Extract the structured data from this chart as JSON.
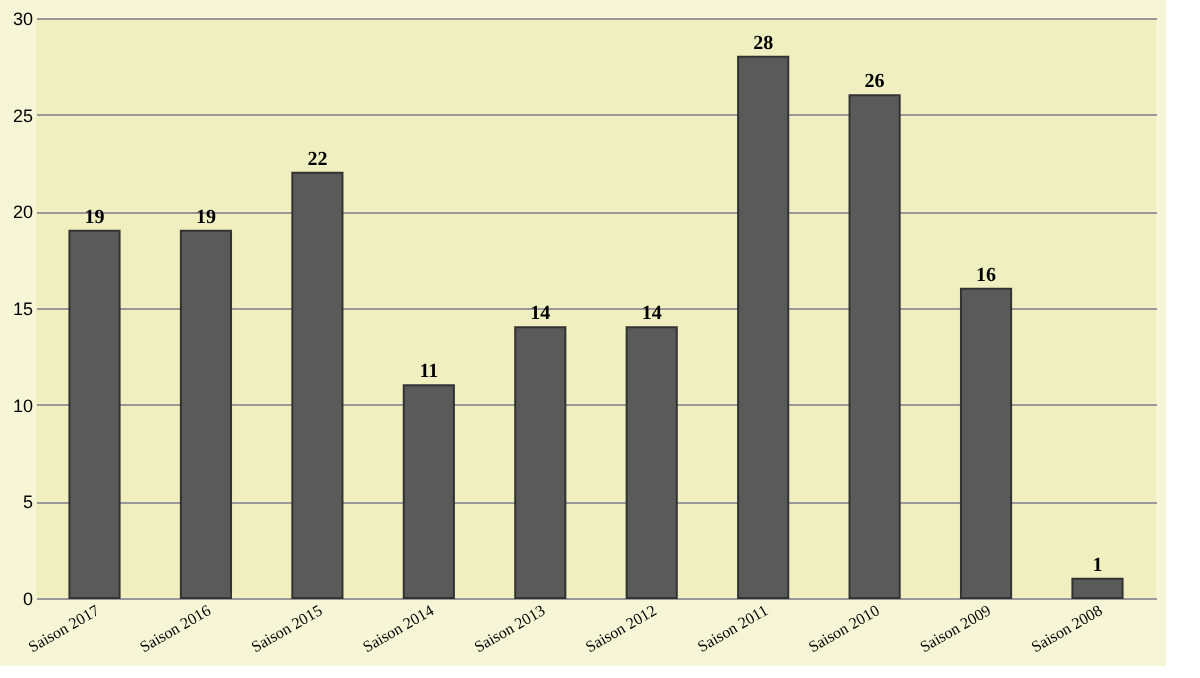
{
  "chart_data": {
    "type": "bar",
    "categories": [
      "Saison 2017",
      "Saison 2016",
      "Saison 2015",
      "Saison 2014",
      "Saison 2013",
      "Saison 2012",
      "Saison 2011",
      "Saison 2010",
      "Saison 2009",
      "Saison 2008"
    ],
    "values": [
      19,
      19,
      22,
      11,
      14,
      14,
      28,
      26,
      16,
      1
    ],
    "color": "#5a5a5a",
    "ylim": [
      0,
      30
    ],
    "yticks": [
      0,
      5,
      10,
      15,
      20,
      25,
      30
    ],
    "grid": "y",
    "data_labels": true
  }
}
